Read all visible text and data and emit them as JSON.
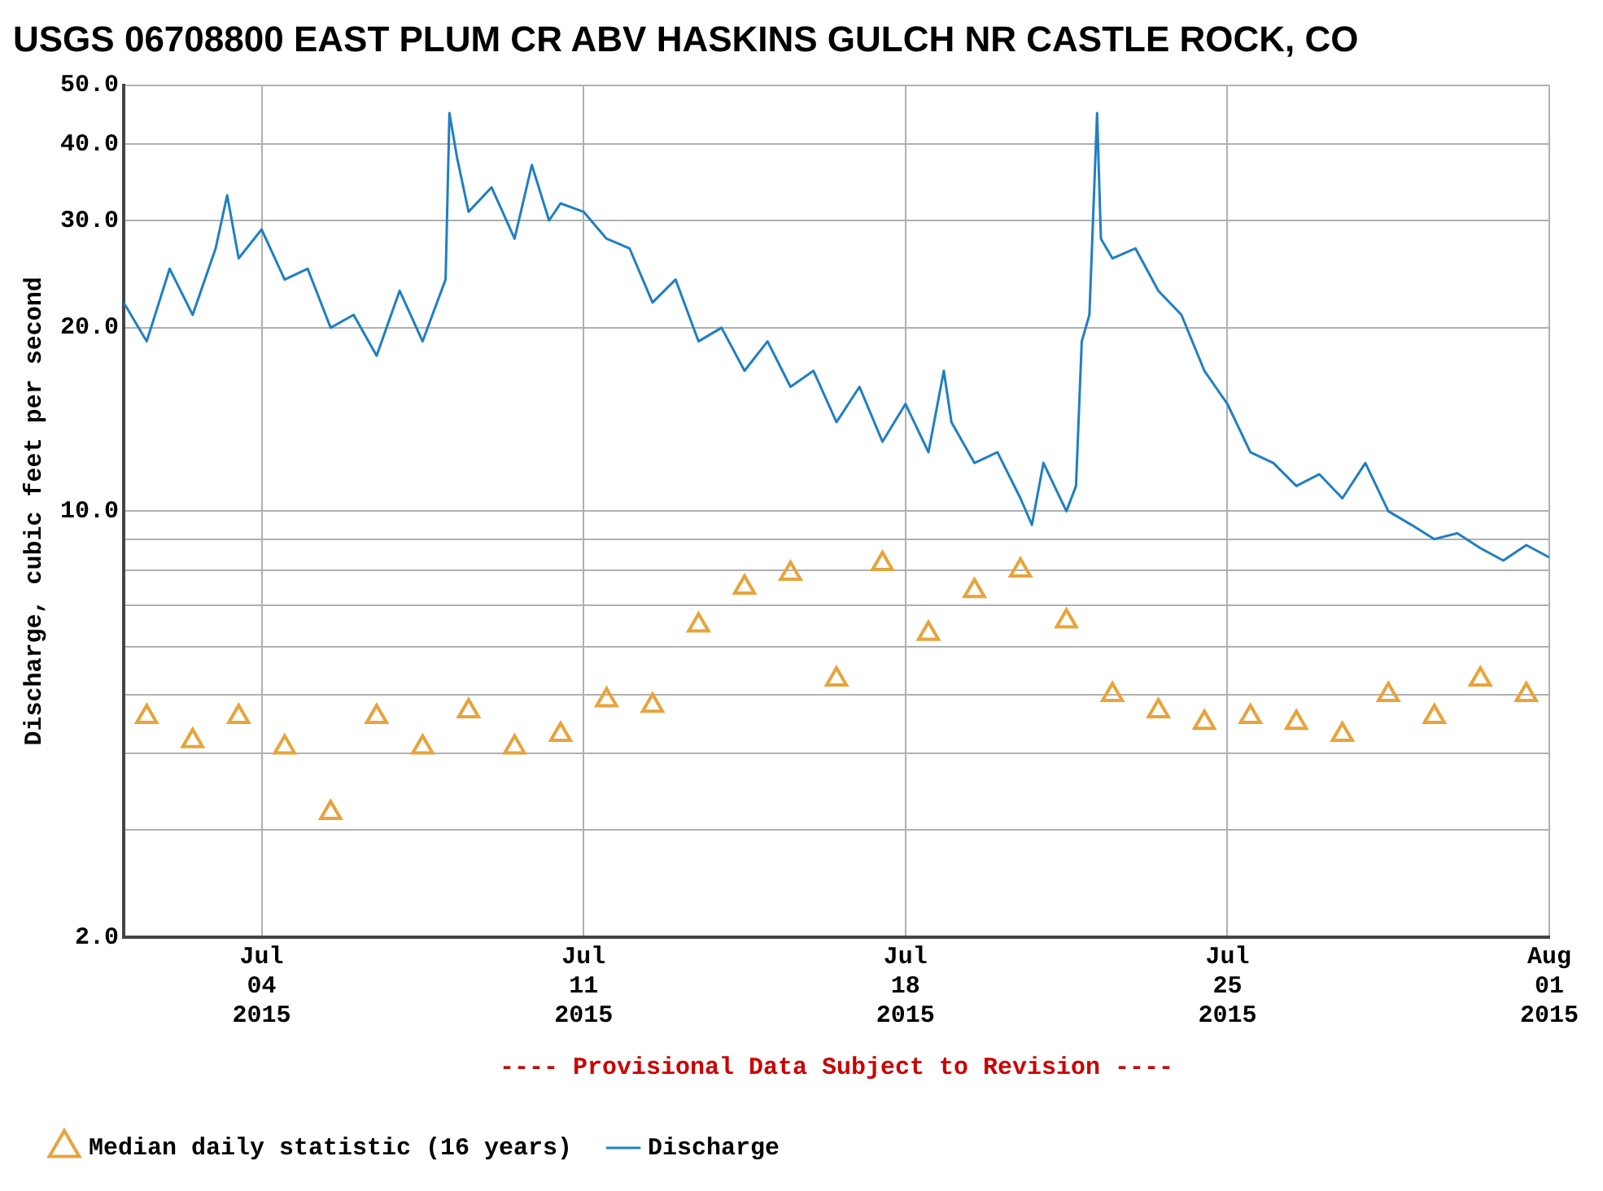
{
  "chart_data": {
    "type": "line",
    "title": "USGS 06708800 EAST PLUM CR ABV HASKINS GULCH NR CASTLE ROCK, CO",
    "ylabel": "Discharge, cubic feet per second",
    "log": "y",
    "grid": true,
    "legend": "bottom",
    "annotations": [
      "---- Provisional Data Subject to Revision ----"
    ],
    "xlim": [
      "2015-07-01T00:00",
      "2015-08-01T00:00"
    ],
    "xticks": [
      {
        "value": "2015-07-04",
        "label": "Jul 04 2015"
      },
      {
        "value": "2015-07-11",
        "label": "Jul 11 2015"
      },
      {
        "value": "2015-07-18",
        "label": "Jul 18 2015"
      },
      {
        "value": "2015-07-25",
        "label": "Jul 25 2015"
      },
      {
        "value": "2015-08-01",
        "label": "Aug 01 2015"
      }
    ],
    "ylim": [
      2,
      50
    ],
    "yticks": [
      {
        "value": 2,
        "label": "2.0"
      },
      {
        "value": 3,
        "label": null
      },
      {
        "value": 4,
        "label": null
      },
      {
        "value": 5,
        "label": null
      },
      {
        "value": 6,
        "label": null
      },
      {
        "value": 7,
        "label": null
      },
      {
        "value": 8,
        "label": null
      },
      {
        "value": 9,
        "label": null
      },
      {
        "value": 10,
        "label": "10.0"
      },
      {
        "value": 20,
        "label": "20.0"
      },
      {
        "value": 30,
        "label": "30.0"
      },
      {
        "value": 40,
        "label": "40.0"
      },
      {
        "value": 50,
        "label": "50.0"
      }
    ],
    "series": [
      {
        "name": "Median daily statistic (16 years)",
        "type": "scatter",
        "marker": "triangle",
        "color": "#e8a33a",
        "x": [
          "2015-07-01T12:00",
          "2015-07-02T12:00",
          "2015-07-03T12:00",
          "2015-07-04T12:00",
          "2015-07-05T12:00",
          "2015-07-06T12:00",
          "2015-07-07T12:00",
          "2015-07-08T12:00",
          "2015-07-09T12:00",
          "2015-07-10T12:00",
          "2015-07-11T12:00",
          "2015-07-12T12:00",
          "2015-07-13T12:00",
          "2015-07-14T12:00",
          "2015-07-15T12:00",
          "2015-07-16T12:00",
          "2015-07-17T12:00",
          "2015-07-18T12:00",
          "2015-07-19T12:00",
          "2015-07-20T12:00",
          "2015-07-21T12:00",
          "2015-07-22T12:00",
          "2015-07-23T12:00",
          "2015-07-24T12:00",
          "2015-07-25T12:00",
          "2015-07-26T12:00",
          "2015-07-27T12:00",
          "2015-07-28T12:00",
          "2015-07-29T12:00",
          "2015-07-30T12:00",
          "2015-07-31T12:00"
        ],
        "values": [
          4.6,
          4.2,
          4.6,
          4.1,
          3.2,
          4.6,
          4.1,
          4.7,
          4.1,
          4.3,
          4.9,
          4.8,
          6.5,
          7.5,
          7.9,
          5.3,
          8.2,
          6.3,
          7.4,
          8.0,
          6.6,
          5.0,
          4.7,
          4.5,
          4.6,
          4.5,
          4.3,
          5.0,
          4.6,
          5.3,
          5.0
        ]
      },
      {
        "name": "Discharge",
        "type": "line",
        "marker": "none",
        "color": "#1f7fc4",
        "x": [
          "2015-07-01T00:00",
          "2015-07-01T12:00",
          "2015-07-02T00:00",
          "2015-07-02T12:00",
          "2015-07-03T00:00",
          "2015-07-03T06:00",
          "2015-07-03T12:00",
          "2015-07-04T00:00",
          "2015-07-04T12:00",
          "2015-07-05T00:00",
          "2015-07-05T12:00",
          "2015-07-06T00:00",
          "2015-07-06T12:00",
          "2015-07-07T00:00",
          "2015-07-07T12:00",
          "2015-07-08T00:00",
          "2015-07-08T02:00",
          "2015-07-08T06:00",
          "2015-07-08T12:00",
          "2015-07-09T00:00",
          "2015-07-09T12:00",
          "2015-07-09T21:00",
          "2015-07-10T06:00",
          "2015-07-10T12:00",
          "2015-07-11T00:00",
          "2015-07-11T12:00",
          "2015-07-12T00:00",
          "2015-07-12T12:00",
          "2015-07-13T00:00",
          "2015-07-13T12:00",
          "2015-07-14T00:00",
          "2015-07-14T12:00",
          "2015-07-15T00:00",
          "2015-07-15T12:00",
          "2015-07-16T00:00",
          "2015-07-16T12:00",
          "2015-07-17T00:00",
          "2015-07-17T12:00",
          "2015-07-18T00:00",
          "2015-07-18T12:00",
          "2015-07-18T20:00",
          "2015-07-19T00:00",
          "2015-07-19T12:00",
          "2015-07-20T00:00",
          "2015-07-20T12:00",
          "2015-07-20T18:00",
          "2015-07-21T00:00",
          "2015-07-21T12:00",
          "2015-07-21T17:00",
          "2015-07-21T20:00",
          "2015-07-22T00:00",
          "2015-07-22T04:00",
          "2015-07-22T06:00",
          "2015-07-22T12:00",
          "2015-07-23T00:00",
          "2015-07-23T12:00",
          "2015-07-24T00:00",
          "2015-07-24T12:00",
          "2015-07-25T00:00",
          "2015-07-25T12:00",
          "2015-07-26T00:00",
          "2015-07-26T12:00",
          "2015-07-27T00:00",
          "2015-07-27T12:00",
          "2015-07-28T00:00",
          "2015-07-28T12:00",
          "2015-07-29T00:00",
          "2015-07-29T12:00",
          "2015-07-30T00:00",
          "2015-07-30T12:00",
          "2015-07-31T00:00",
          "2015-07-31T12:00",
          "2015-08-01T00:00"
        ],
        "values": [
          22,
          19,
          25,
          21,
          27,
          33,
          26,
          29,
          24,
          25,
          20,
          21,
          18,
          23,
          19,
          24,
          45,
          38,
          31,
          34,
          28,
          37,
          30,
          32,
          31,
          28,
          27,
          22,
          24,
          19,
          20,
          17,
          19,
          16,
          17,
          14,
          16,
          13,
          15,
          12.5,
          17,
          14,
          12,
          12.5,
          10.5,
          9.5,
          12,
          10,
          11,
          19,
          21,
          45,
          28,
          26,
          27,
          23,
          21,
          17,
          15,
          12.5,
          12,
          11,
          11.5,
          10.5,
          12,
          10,
          9.5,
          9,
          9.2,
          8.7,
          8.3,
          8.8,
          8.4
        ]
      }
    ]
  }
}
